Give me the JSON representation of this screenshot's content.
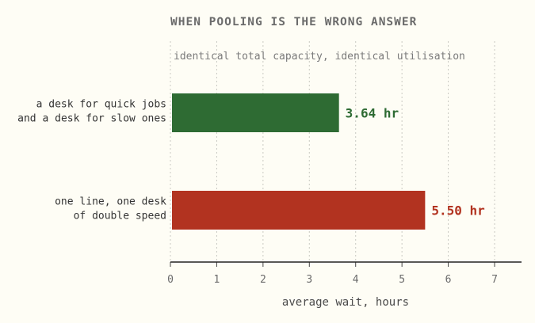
{
  "chart_data": {
    "type": "bar",
    "orientation": "horizontal",
    "title": "WHEN POOLING IS THE WRONG ANSWER",
    "subtitle": "identical total capacity, identical utilisation",
    "categories": [
      [
        "a desk for quick jobs",
        "and a desk for slow ones"
      ],
      [
        "one line, one desk",
        "of double speed"
      ]
    ],
    "values": [
      3.64,
      5.5
    ],
    "value_labels": [
      "3.64 hr",
      "5.50 hr"
    ],
    "colors": [
      "#2e6b33",
      "#b23320"
    ],
    "xlabel": "average wait, hours",
    "xlim": [
      0,
      7.6
    ],
    "xticks": [
      0,
      1,
      2,
      3,
      4,
      5,
      6,
      7
    ],
    "grid": true
  }
}
